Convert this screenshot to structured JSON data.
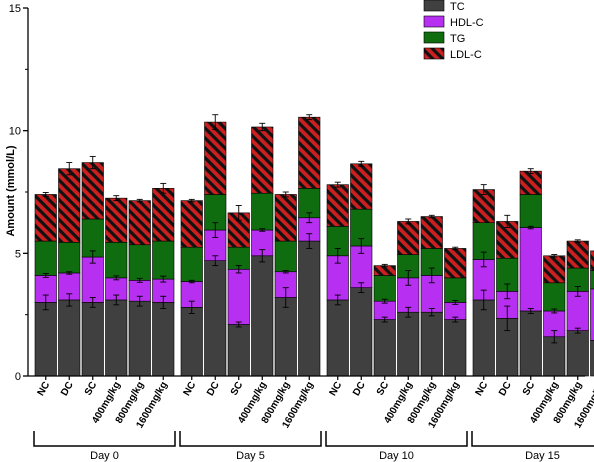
{
  "chart_data": {
    "type": "bar",
    "stacked": true,
    "title": "",
    "xlabel": "",
    "ylabel": "Amount (mmol/L)",
    "ylim": [
      0,
      15
    ],
    "yticks": [
      0,
      5,
      10,
      15
    ],
    "legend": {
      "placement": "top-right"
    },
    "categories": [
      "NC",
      "DC",
      "SC",
      "400mg/kg",
      "800mg/kg",
      "1600mg/kg"
    ],
    "groups": [
      "Day 0",
      "Day 5",
      "Day 10",
      "Day 15"
    ],
    "series": [
      {
        "name": "TC",
        "color": "#404040",
        "pattern": "solid",
        "values": [
          [
            3.0,
            3.1,
            3.0,
            3.1,
            3.05,
            3.0
          ],
          [
            2.8,
            4.7,
            2.1,
            4.9,
            3.2,
            5.5
          ],
          [
            3.1,
            3.6,
            2.3,
            2.6,
            2.6,
            2.3
          ],
          [
            3.1,
            2.35,
            2.65,
            1.6,
            1.85,
            1.45
          ]
        ],
        "errors": [
          [
            0.3,
            0.25,
            0.2,
            0.2,
            0.2,
            0.25
          ],
          [
            0.25,
            0.2,
            0.1,
            0.25,
            0.4,
            0.3
          ],
          [
            0.2,
            0.2,
            0.1,
            0.2,
            0.15,
            0.1
          ],
          [
            0.4,
            0.5,
            0.1,
            0.25,
            0.1,
            0.3
          ]
        ]
      },
      {
        "name": "HDL-C",
        "color": "#b72ff0",
        "pattern": "solid",
        "values": [
          [
            1.1,
            1.1,
            1.85,
            0.9,
            0.85,
            0.95
          ],
          [
            1.05,
            1.25,
            2.25,
            1.05,
            1.05,
            0.95
          ],
          [
            1.8,
            1.7,
            0.75,
            1.4,
            1.5,
            0.7
          ],
          [
            1.65,
            1.1,
            3.4,
            1.05,
            1.6,
            2.1
          ]
        ],
        "errors": [
          [
            0.08,
            0.05,
            0.25,
            0.08,
            0.08,
            0.12
          ],
          [
            0.05,
            0.3,
            0.15,
            0.05,
            0.05,
            0.2
          ],
          [
            0.3,
            0.3,
            0.08,
            0.3,
            0.3,
            0.08
          ],
          [
            0.3,
            0.3,
            0.05,
            0.08,
            0.2,
            0.3
          ]
        ]
      },
      {
        "name": "TG",
        "color": "#0f6d0f",
        "pattern": "solid",
        "values": [
          [
            1.4,
            1.25,
            1.55,
            1.45,
            1.45,
            1.55
          ],
          [
            1.4,
            1.45,
            0.9,
            1.5,
            1.25,
            1.2
          ],
          [
            1.2,
            1.5,
            1.05,
            0.95,
            1.1,
            1.0
          ],
          [
            1.5,
            1.35,
            1.35,
            1.15,
            0.95,
            0.75
          ]
        ],
        "errors": [
          [
            0.0,
            0.0,
            0.0,
            0.0,
            0.0,
            0.0
          ],
          [
            0.0,
            0.0,
            0.0,
            0.0,
            0.0,
            0.0
          ],
          [
            0.0,
            0.0,
            0.0,
            0.0,
            0.0,
            0.0
          ],
          [
            0.0,
            0.0,
            0.0,
            0.0,
            0.0,
            0.0
          ]
        ]
      },
      {
        "name": "LDL-C",
        "color": "#cc1f1f",
        "pattern": "hatched",
        "values": [
          [
            1.9,
            3.0,
            2.3,
            1.8,
            1.8,
            2.15
          ],
          [
            1.9,
            2.95,
            1.4,
            2.7,
            1.9,
            2.9
          ],
          [
            1.7,
            1.85,
            0.4,
            1.35,
            1.3,
            1.2
          ],
          [
            1.35,
            1.5,
            0.95,
            1.1,
            1.1,
            0.8
          ]
        ],
        "errors": [
          [
            0.08,
            0.25,
            0.25,
            0.1,
            0.05,
            0.2
          ],
          [
            0.05,
            0.3,
            0.3,
            0.15,
            0.1,
            0.1
          ],
          [
            0.1,
            0.1,
            0.05,
            0.1,
            0.05,
            0.05
          ],
          [
            0.2,
            0.25,
            0.1,
            0.05,
            0.05,
            0.05
          ]
        ]
      }
    ]
  }
}
